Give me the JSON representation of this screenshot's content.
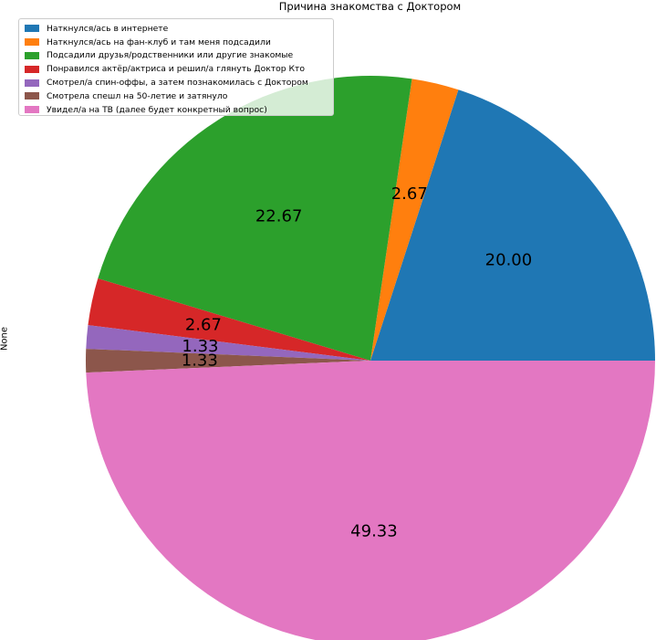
{
  "chart_data": {
    "type": "pie",
    "title": "Причина знакомства с Доктором",
    "ylabel": "None",
    "legend_placement": "upper-left",
    "slices": [
      {
        "name": "Наткнулся/ась в интернете",
        "value": 20.0,
        "label": "20.00",
        "color": "#1f77b4"
      },
      {
        "name": "Наткнулся/ась на фан-клуб и там меня подсадили",
        "value": 2.67,
        "label": "2.67",
        "color": "#ff7f0e"
      },
      {
        "name": "Подсадили друзья/родственники или другие знакомые",
        "value": 22.67,
        "label": "22.67",
        "color": "#2ca02c"
      },
      {
        "name": "Понравился актёр/актриса и решил/а глянуть Доктор Кто",
        "value": 2.67,
        "label": "2.67",
        "color": "#d62728"
      },
      {
        "name": "Смотрел/а спин-оффы, а затем познакомилась с Доктором",
        "value": 1.33,
        "label": "1.33",
        "color": "#9467bd"
      },
      {
        "name": "Смотрела спешл на 50-летие и затянуло",
        "value": 1.33,
        "label": "1.33",
        "color": "#8c564b"
      },
      {
        "name": "Увидел/а на ТВ (далее будет конкретный вопрос)",
        "value": 49.33,
        "label": "49.33",
        "color": "#e377c2"
      }
    ]
  }
}
